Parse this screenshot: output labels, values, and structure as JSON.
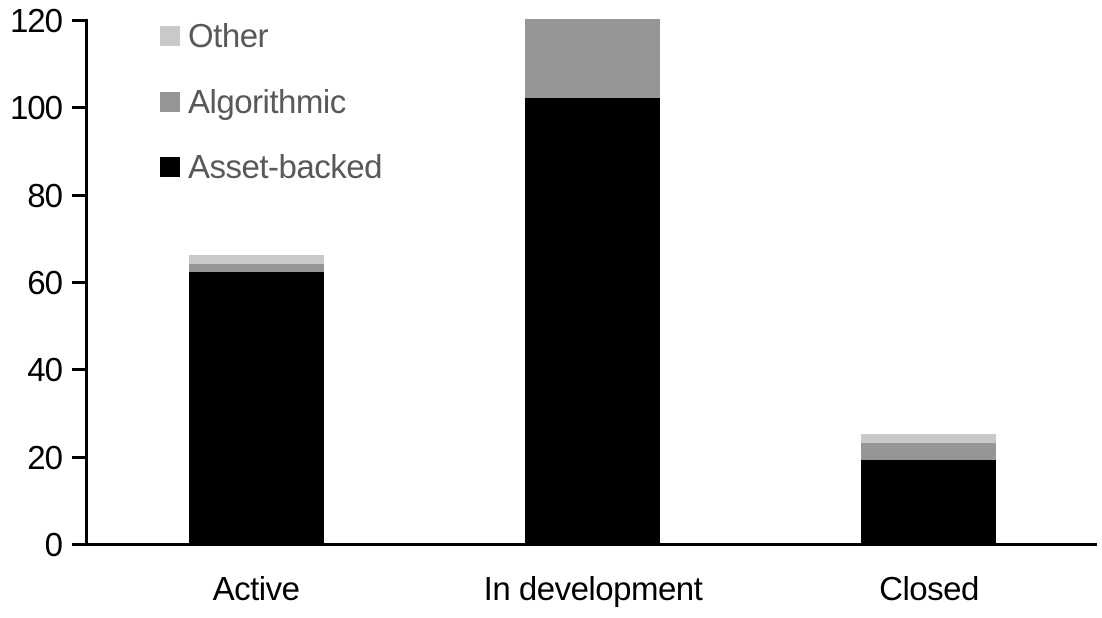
{
  "chart_data": {
    "type": "bar",
    "stacked": true,
    "title": "",
    "xlabel": "",
    "ylabel": "",
    "categories": [
      "Active",
      "In development",
      "Closed"
    ],
    "series": [
      {
        "name": "Asset-backed",
        "color": "#000000",
        "values": [
          62,
          102,
          19
        ]
      },
      {
        "name": "Algorithmic",
        "color": "#969696",
        "values": [
          2,
          18,
          4
        ]
      },
      {
        "name": "Other",
        "color": "#c9c9c9",
        "values": [
          2,
          0,
          2
        ]
      }
    ],
    "ylim": [
      0,
      120
    ],
    "yticks": [
      0,
      20,
      40,
      60,
      80,
      100,
      120
    ],
    "grid": false,
    "legend_position": "top-left",
    "legend_order": [
      "Other",
      "Algorithmic",
      "Asset-backed"
    ]
  },
  "colors": {
    "background": "#ffffff",
    "axis": "#000000",
    "tick_label_text": "#000000",
    "category_label_text": "#000000",
    "legend_text": "#595959"
  }
}
